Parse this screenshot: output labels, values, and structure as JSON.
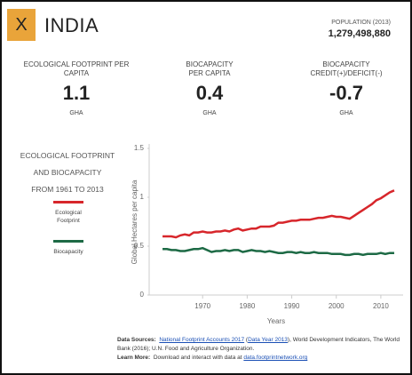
{
  "header": {
    "close": "X",
    "country": "INDIA",
    "population_label": "POPULATION (2013)",
    "population": "1,279,498,880"
  },
  "stats": [
    {
      "label": "ECOLOGICAL FOOTPRINT PER CAPITA",
      "value": "1.1",
      "unit": "GHA"
    },
    {
      "label": "BIOCAPACITY PER CAPITA",
      "value": "0.4",
      "unit": "GHA"
    },
    {
      "label": "BIOCAPACITY CREDIT(+)/DEFICIT(-)",
      "value": "-0.7",
      "unit": "GHA"
    }
  ],
  "chart_desc": [
    "ECOLOGICAL FOOTPRINT",
    "AND BIOCAPACITY",
    "FROM 1961 TO 2013"
  ],
  "chart_data": {
    "type": "line",
    "x_label": "Years",
    "y_label": "Global Hectares per capita",
    "x": [
      1961,
      1962,
      1963,
      1964,
      1965,
      1966,
      1967,
      1968,
      1969,
      1970,
      1971,
      1972,
      1973,
      1974,
      1975,
      1976,
      1977,
      1978,
      1979,
      1980,
      1981,
      1982,
      1983,
      1984,
      1985,
      1986,
      1987,
      1988,
      1989,
      1990,
      1991,
      1992,
      1993,
      1994,
      1995,
      1996,
      1997,
      1998,
      1999,
      2000,
      2001,
      2002,
      2003,
      2004,
      2005,
      2006,
      2007,
      2008,
      2009,
      2010,
      2011,
      2012,
      2013
    ],
    "series": [
      {
        "name": "Ecological Footprint",
        "color": "#d7262b",
        "values": [
          0.6,
          0.6,
          0.6,
          0.59,
          0.61,
          0.62,
          0.61,
          0.64,
          0.64,
          0.65,
          0.64,
          0.64,
          0.65,
          0.65,
          0.66,
          0.65,
          0.67,
          0.68,
          0.66,
          0.67,
          0.68,
          0.68,
          0.7,
          0.7,
          0.7,
          0.71,
          0.74,
          0.74,
          0.75,
          0.76,
          0.76,
          0.77,
          0.77,
          0.77,
          0.78,
          0.79,
          0.79,
          0.8,
          0.81,
          0.8,
          0.8,
          0.79,
          0.78,
          0.81,
          0.84,
          0.87,
          0.9,
          0.93,
          0.97,
          0.99,
          1.02,
          1.05,
          1.07
        ]
      },
      {
        "name": "Biocapacity",
        "color": "#1d6a45",
        "values": [
          0.47,
          0.47,
          0.46,
          0.46,
          0.45,
          0.45,
          0.46,
          0.47,
          0.47,
          0.48,
          0.46,
          0.44,
          0.45,
          0.45,
          0.46,
          0.45,
          0.46,
          0.46,
          0.44,
          0.45,
          0.46,
          0.45,
          0.45,
          0.44,
          0.45,
          0.44,
          0.43,
          0.43,
          0.44,
          0.44,
          0.43,
          0.44,
          0.43,
          0.43,
          0.44,
          0.43,
          0.43,
          0.43,
          0.42,
          0.42,
          0.42,
          0.41,
          0.41,
          0.42,
          0.42,
          0.41,
          0.42,
          0.42,
          0.42,
          0.43,
          0.42,
          0.43,
          0.43
        ]
      }
    ],
    "xlim": [
      1958,
      2015
    ],
    "xticks": [
      1970,
      1980,
      1990,
      2000,
      2010
    ],
    "ylim": [
      0,
      1.5
    ],
    "yticks": [
      0,
      0.5,
      1,
      1.5
    ]
  },
  "footer": {
    "sources_label": "Data Sources:",
    "sources_link1": "National Footprint Accounts 2017",
    "sources_open": "(",
    "sources_link2": "Data Year 2013",
    "sources_rest": "), World Development Indicators, The World Bank (2016); U.N. Food and Agriculture Organization.",
    "learn_label": "Learn More:",
    "learn_text": "Download and interact with data at",
    "learn_link": "data.footprintnetwork.org"
  }
}
